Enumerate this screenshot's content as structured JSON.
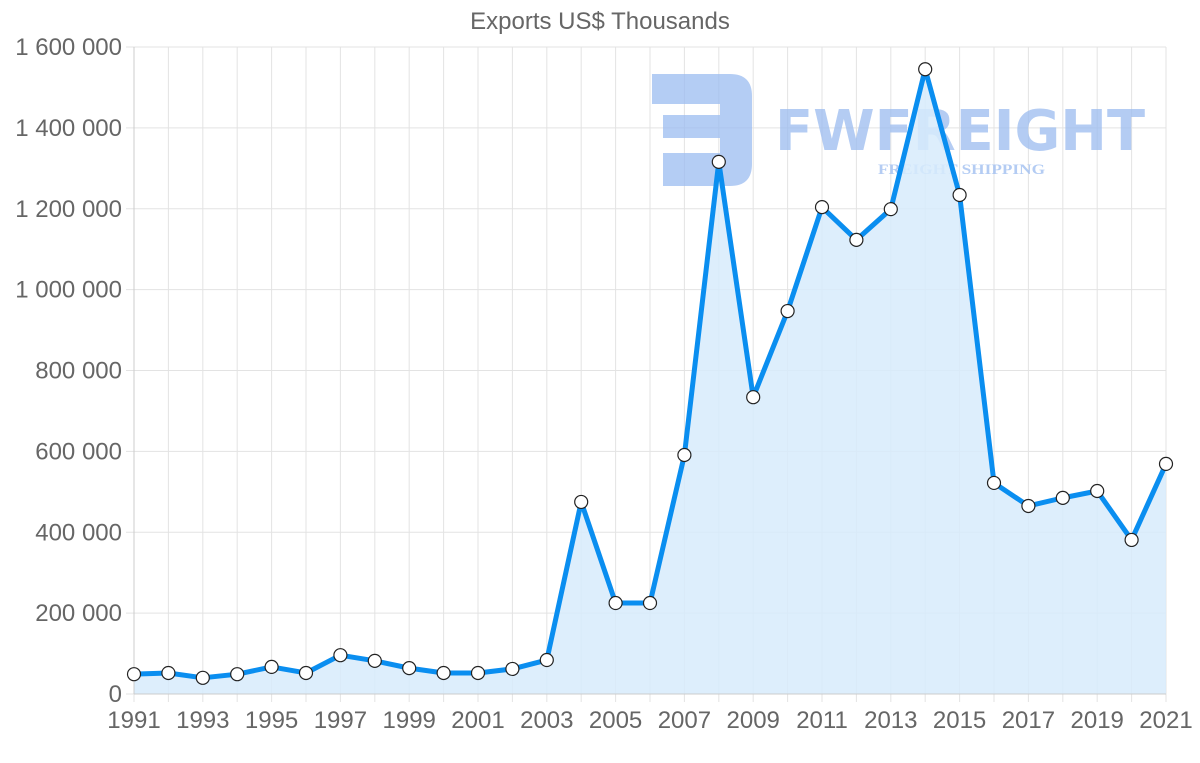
{
  "chart_data": {
    "type": "line",
    "title": "Exports US$ Thousands",
    "xlabel": "",
    "ylabel": "",
    "x": [
      1991,
      1992,
      1993,
      1994,
      1995,
      1996,
      1997,
      1998,
      1999,
      2000,
      2001,
      2002,
      2003,
      2004,
      2005,
      2006,
      2007,
      2008,
      2009,
      2010,
      2011,
      2012,
      2013,
      2014,
      2015,
      2016,
      2017,
      2018,
      2019,
      2020,
      2021
    ],
    "series": [
      {
        "name": "Exports US$ Thousands",
        "values": [
          49000,
          52000,
          40000,
          49000,
          67000,
          52000,
          96000,
          82000,
          64000,
          52000,
          52000,
          62000,
          84000,
          475000,
          225000,
          225000,
          591000,
          1316000,
          734000,
          947000,
          1204000,
          1123000,
          1199000,
          1545000,
          1234000,
          522000,
          465000,
          485000,
          502000,
          381000,
          569000
        ]
      }
    ],
    "ylim": [
      0,
      1600000
    ],
    "xlim": [
      1991,
      2021
    ],
    "y_ticks": [
      0,
      200000,
      400000,
      600000,
      800000,
      1000000,
      1200000,
      1400000,
      1600000
    ],
    "y_tick_labels": [
      "0",
      "200 000",
      "400 000",
      "600 000",
      "800 000",
      "1 000 000",
      "1 200 000",
      "1 400 000",
      "1 600 000"
    ],
    "x_tick_labels": [
      "1991",
      "1993",
      "1995",
      "1997",
      "1999",
      "2001",
      "2003",
      "2005",
      "2007",
      "2009",
      "2011",
      "2013",
      "2015",
      "2017",
      "2019",
      "2021"
    ],
    "grid": true,
    "fill_area": true,
    "legend": "none",
    "colors": {
      "line": "#0a8ef0",
      "fill": "#d7ebfc",
      "marker_fill": "#ffffff",
      "marker_stroke": "#222222",
      "grid": "#e3e3e3",
      "axis_text": "#666666"
    }
  },
  "watermark": {
    "brand": "FWFREIGHT",
    "tagline": "FREIGHT SHIPPING",
    "color": "#9bbcf0"
  }
}
